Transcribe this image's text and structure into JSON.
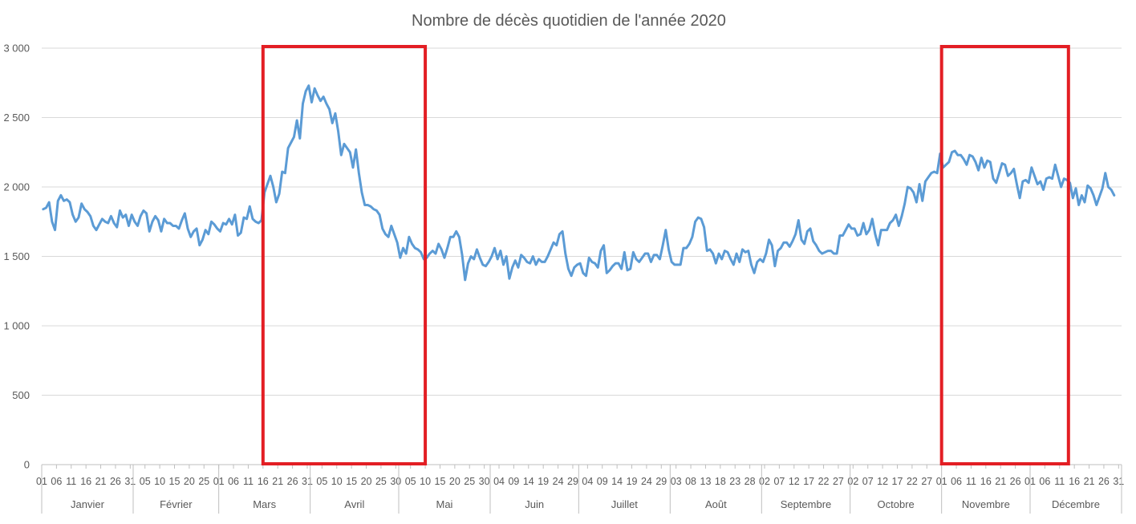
{
  "chart_data": {
    "type": "line",
    "title": "Nombre de décès quotidien de l'année 2020",
    "xlabel": "",
    "ylabel": "",
    "ylim": [
      0,
      3000
    ],
    "yticks": [
      {
        "value": 0,
        "label": "0"
      },
      {
        "value": 500,
        "label": "500"
      },
      {
        "value": 1000,
        "label": "1 000"
      },
      {
        "value": 1500,
        "label": "1 500"
      },
      {
        "value": 2000,
        "label": "2 000"
      },
      {
        "value": 2500,
        "label": "2 500"
      },
      {
        "value": 3000,
        "label": "3 000"
      }
    ],
    "grid": true,
    "line_color": "#5b9bd5",
    "highlight_color": "#e31e24",
    "months": [
      {
        "name": "Janvier",
        "days": 31,
        "ticks": [
          "01",
          "06",
          "11",
          "16",
          "21",
          "26",
          "31"
        ]
      },
      {
        "name": "Février",
        "days": 29,
        "ticks": [
          "05",
          "10",
          "15",
          "20",
          "25"
        ]
      },
      {
        "name": "Mars",
        "days": 31,
        "ticks": [
          "01",
          "06",
          "11",
          "16",
          "21",
          "26",
          "31"
        ]
      },
      {
        "name": "Avril",
        "days": 30,
        "ticks": [
          "05",
          "10",
          "15",
          "20",
          "25",
          "30"
        ]
      },
      {
        "name": "Mai",
        "days": 31,
        "ticks": [
          "05",
          "10",
          "15",
          "20",
          "25",
          "30"
        ]
      },
      {
        "name": "Juin",
        "days": 30,
        "ticks": [
          "04",
          "09",
          "14",
          "19",
          "24",
          "29"
        ]
      },
      {
        "name": "Juillet",
        "days": 31,
        "ticks": [
          "04",
          "09",
          "14",
          "19",
          "24",
          "29"
        ]
      },
      {
        "name": "Août",
        "days": 31,
        "ticks": [
          "03",
          "08",
          "13",
          "18",
          "23",
          "28"
        ]
      },
      {
        "name": "Septembre",
        "days": 30,
        "ticks": [
          "02",
          "07",
          "12",
          "17",
          "22",
          "27"
        ]
      },
      {
        "name": "Octobre",
        "days": 31,
        "ticks": [
          "02",
          "07",
          "12",
          "17",
          "22",
          "27"
        ]
      },
      {
        "name": "Novembre",
        "days": 30,
        "ticks": [
          "01",
          "06",
          "11",
          "16",
          "21",
          "26"
        ]
      },
      {
        "name": "Décembre",
        "days": 31,
        "ticks": [
          "01",
          "06",
          "11",
          "16",
          "21",
          "26",
          "31"
        ]
      }
    ],
    "series": [
      {
        "values": [
          1840,
          1850,
          1890,
          1750,
          1690,
          1900,
          1940,
          1900,
          1910,
          1890,
          1800,
          1750,
          1780,
          1880,
          1840,
          1820,
          1790,
          1720,
          1690,
          1730,
          1770,
          1750,
          1740,
          1790,
          1740,
          1710,
          1830,
          1780,
          1800,
          1720,
          1800,
          1750,
          1720,
          1790,
          1830,
          1810,
          1680,
          1750,
          1790,
          1760,
          1680,
          1770,
          1740,
          1740,
          1720,
          1720,
          1700,
          1760,
          1810,
          1700,
          1640,
          1680,
          1700,
          1580,
          1620,
          1690,
          1660,
          1750,
          1730,
          1700,
          1680,
          1740,
          1730,
          1770,
          1730,
          1800,
          1650,
          1670,
          1780,
          1770,
          1860,
          1770,
          1750,
          1740,
          1760,
          1960,
          2020,
          2080,
          2000,
          1890,
          1950,
          2110,
          2100,
          2280,
          2320,
          2360,
          2480,
          2350,
          2600,
          2690,
          2730,
          2610,
          2710,
          2660,
          2620,
          2650,
          2600,
          2560,
          2460,
          2530,
          2400,
          2230,
          2310,
          2280,
          2250,
          2140,
          2270,
          2100,
          1960,
          1870,
          1870,
          1860,
          1840,
          1830,
          1800,
          1700,
          1660,
          1640,
          1720,
          1660,
          1600,
          1490,
          1560,
          1520,
          1640,
          1590,
          1560,
          1550,
          1530,
          1480,
          1490,
          1520,
          1540,
          1520,
          1590,
          1550,
          1490,
          1560,
          1640,
          1640,
          1680,
          1640,
          1510,
          1330,
          1450,
          1500,
          1480,
          1550,
          1490,
          1440,
          1430,
          1460,
          1500,
          1560,
          1480,
          1540,
          1440,
          1500,
          1340,
          1420,
          1470,
          1420,
          1510,
          1490,
          1460,
          1450,
          1500,
          1440,
          1480,
          1460,
          1460,
          1500,
          1550,
          1600,
          1580,
          1660,
          1680,
          1520,
          1410,
          1360,
          1420,
          1440,
          1450,
          1380,
          1360,
          1490,
          1460,
          1450,
          1420,
          1540,
          1580,
          1380,
          1400,
          1430,
          1450,
          1450,
          1410,
          1530,
          1400,
          1410,
          1530,
          1480,
          1460,
          1490,
          1520,
          1520,
          1460,
          1510,
          1510,
          1480,
          1580,
          1690,
          1550,
          1460,
          1440,
          1440,
          1440,
          1560,
          1560,
          1590,
          1640,
          1750,
          1780,
          1770,
          1710,
          1540,
          1550,
          1520,
          1450,
          1520,
          1480,
          1540,
          1530,
          1480,
          1440,
          1520,
          1460,
          1550,
          1530,
          1540,
          1440,
          1380,
          1460,
          1480,
          1460,
          1520,
          1620,
          1580,
          1430,
          1540,
          1560,
          1600,
          1600,
          1570,
          1610,
          1660,
          1760,
          1620,
          1590,
          1680,
          1700,
          1610,
          1580,
          1540,
          1520,
          1530,
          1540,
          1540,
          1520,
          1520,
          1650,
          1650,
          1690,
          1730,
          1700,
          1700,
          1650,
          1660,
          1740,
          1660,
          1690,
          1770,
          1660,
          1580,
          1690,
          1690,
          1690,
          1740,
          1760,
          1800,
          1720,
          1790,
          1880,
          2000,
          1990,
          1960,
          1890,
          2020,
          1900,
          2040,
          2070,
          2100,
          2110,
          2100,
          2240,
          2140,
          2160,
          2180,
          2250,
          2260,
          2230,
          2230,
          2200,
          2160,
          2230,
          2220,
          2180,
          2120,
          2210,
          2140,
          2190,
          2180,
          2060,
          2030,
          2100,
          2170,
          2160,
          2080,
          2100,
          2130,
          2020,
          1920,
          2040,
          2050,
          2030,
          2140,
          2080,
          2020,
          2040,
          1980,
          2060,
          2070,
          2060,
          2160,
          2080,
          2000,
          2060,
          2050,
          2030,
          1920,
          1990,
          1870,
          1940,
          1890,
          2010,
          1990,
          1940,
          1870,
          1930,
          1990,
          2100,
          2000,
          1980,
          1940
        ]
      }
    ],
    "highlights": [
      {
        "start_day": 75,
        "end_day": 130
      },
      {
        "start_day": 305,
        "end_day": 348
      }
    ]
  }
}
